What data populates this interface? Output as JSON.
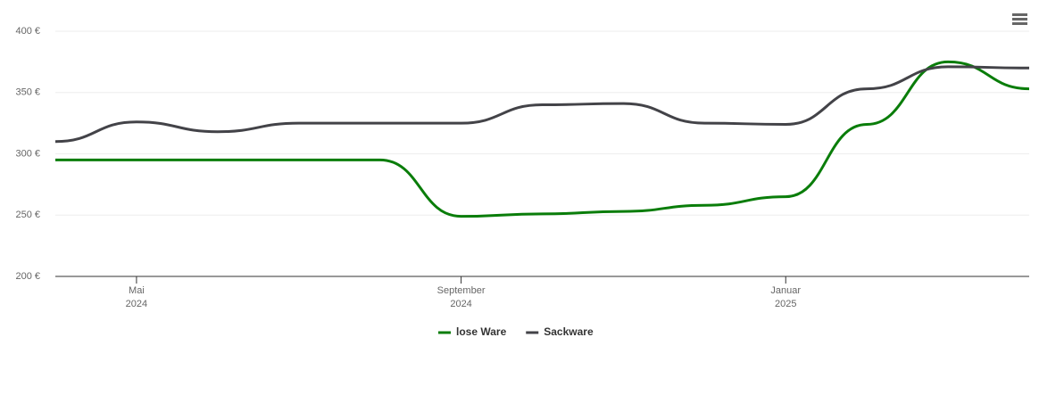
{
  "chart_data": {
    "type": "line",
    "x": [
      "2024-04",
      "2024-05",
      "2024-06",
      "2024-07",
      "2024-08",
      "2024-09",
      "2024-10",
      "2024-11",
      "2024-12",
      "2025-01",
      "2025-02",
      "2025-03",
      "2025-04"
    ],
    "series": [
      {
        "name": "lose Ware",
        "color": "#0a7d0a",
        "values": [
          295,
          295,
          295,
          295,
          295,
          249,
          251,
          253,
          258,
          265,
          324,
          375,
          353
        ]
      },
      {
        "name": "Sackware",
        "color": "#434348",
        "values": [
          310,
          326,
          318,
          325,
          325,
          325,
          340,
          341,
          325,
          324,
          353,
          371,
          370
        ]
      }
    ],
    "xlim": [
      "2024-04",
      "2025-04"
    ],
    "xticks": [
      {
        "value": "2024-05",
        "label": "Mai",
        "label2": "2024"
      },
      {
        "value": "2024-09",
        "label": "September",
        "label2": "2024"
      },
      {
        "value": "2025-01",
        "label": "Januar",
        "label2": "2025"
      }
    ],
    "ylim": [
      200,
      400
    ],
    "yticks": [
      {
        "value": 200,
        "label": "200 €"
      },
      {
        "value": 250,
        "label": "250 €"
      },
      {
        "value": 300,
        "label": "300 €"
      },
      {
        "value": 350,
        "label": "350 €"
      },
      {
        "value": 400,
        "label": "400 €"
      }
    ],
    "grid": true,
    "legend": "bottom"
  }
}
